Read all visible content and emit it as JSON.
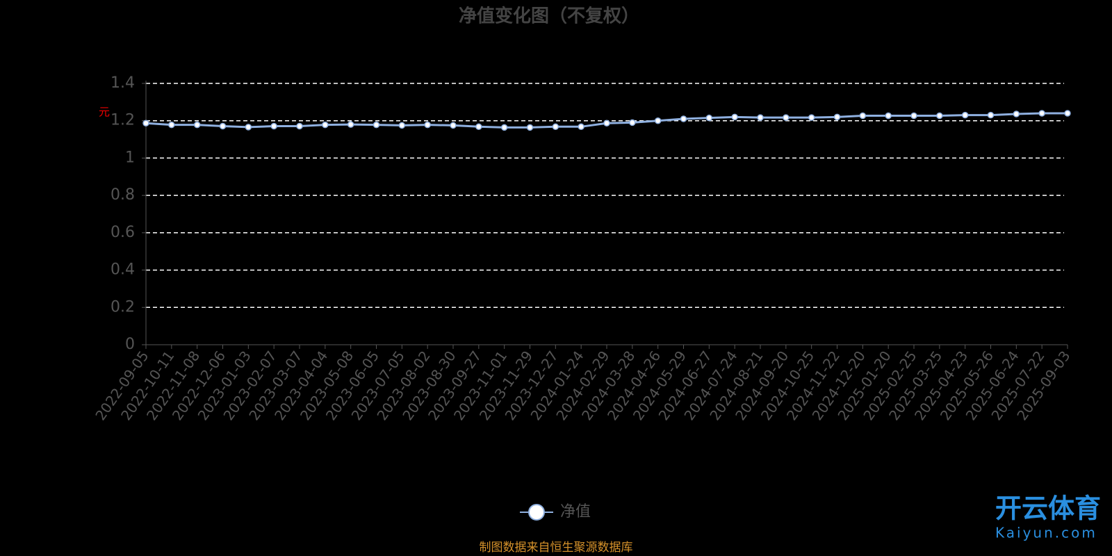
{
  "chart_data": {
    "type": "line",
    "title": "净值变化图（不复权）",
    "y_label": "元",
    "categories": [
      "2022-09-05",
      "2022-10-11",
      "2022-11-08",
      "2022-12-06",
      "2023-01-03",
      "2023-02-07",
      "2023-03-07",
      "2023-04-04",
      "2023-05-08",
      "2023-06-05",
      "2023-07-05",
      "2023-08-02",
      "2023-08-30",
      "2023-09-27",
      "2023-11-01",
      "2023-11-29",
      "2023-12-27",
      "2024-01-24",
      "2024-02-29",
      "2024-03-28",
      "2024-04-26",
      "2024-05-29",
      "2024-06-27",
      "2024-07-24",
      "2024-08-21",
      "2024-09-20",
      "2024-10-25",
      "2024-11-22",
      "2024-12-20",
      "2025-01-20",
      "2025-02-25",
      "2025-03-25",
      "2025-04-23",
      "2025-05-26",
      "2025-06-24",
      "2025-07-22",
      "2025-09-03"
    ],
    "series": [
      {
        "name": "净值",
        "color": "#8fb0e0",
        "values": [
          1.187,
          1.178,
          1.178,
          1.171,
          1.166,
          1.171,
          1.171,
          1.178,
          1.18,
          1.178,
          1.175,
          1.178,
          1.175,
          1.168,
          1.164,
          1.164,
          1.168,
          1.168,
          1.187,
          1.19,
          1.2,
          1.21,
          1.215,
          1.22,
          1.217,
          1.217,
          1.217,
          1.22,
          1.227,
          1.227,
          1.227,
          1.227,
          1.23,
          1.23,
          1.236,
          1.24,
          1.24
        ]
      }
    ],
    "ylim": [
      0,
      1.4
    ],
    "yticks": [
      0,
      0.2,
      0.4,
      0.6,
      0.8,
      1,
      1.2,
      1.4
    ],
    "grid": true,
    "source": "制图数据来自恒生聚源数据库"
  },
  "watermark": {
    "brand": "开云体育",
    "url": "Kaiyun.com"
  }
}
